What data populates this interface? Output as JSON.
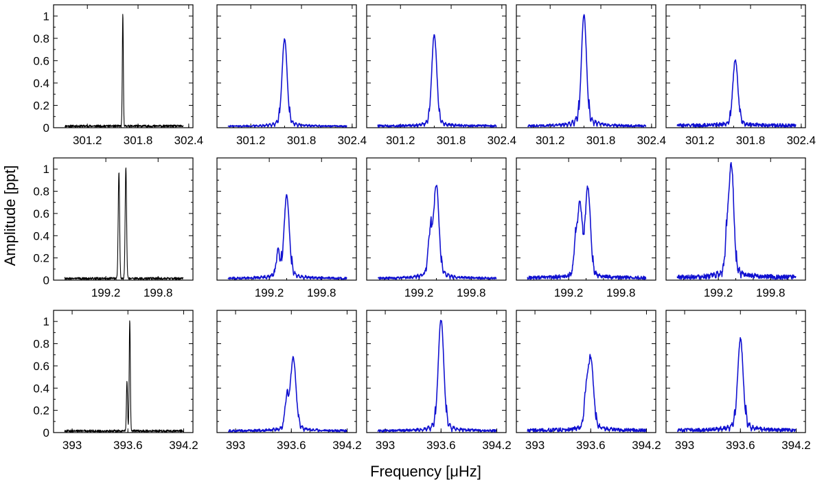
{
  "figure": {
    "ylabel": "Amplitude [ppt]",
    "xlabel": "Frequency [μHz]",
    "colors": {
      "observed": "#000000",
      "model": "#1010d0",
      "axis": "#000000"
    }
  },
  "chart_data": [
    {
      "type": "line",
      "row": 0,
      "x_range": [
        300.8,
        302.45
      ],
      "x_ticks": [
        301.2,
        301.8,
        302.4
      ],
      "x_tick_labels": [
        "301.2",
        "301.8",
        "302.4"
      ],
      "ylim": [
        0,
        1.1
      ],
      "y_ticks": [
        0,
        0.2,
        0.4,
        0.6,
        0.8,
        1
      ],
      "y_tick_labels": [
        "0",
        "0.2",
        "0.4",
        "0.6",
        "0.8",
        "1"
      ],
      "panels": [
        {
          "kind": "observed",
          "peaks": [
            [
              301.62,
              1.0,
              0.006
            ]
          ],
          "sidelobes": 0,
          "noise": 0.02
        },
        {
          "kind": "model",
          "peaks": [
            [
              301.6,
              0.78,
              0.03
            ]
          ],
          "sidelobes": 0.16,
          "noise": 0.015
        },
        {
          "kind": "model",
          "peaks": [
            [
              301.6,
              0.82,
              0.03
            ]
          ],
          "sidelobes": 0.13,
          "noise": 0.02
        },
        {
          "kind": "model",
          "peaks": [
            [
              301.6,
              1.0,
              0.03
            ]
          ],
          "sidelobes": 0.2,
          "noise": 0.02
        },
        {
          "kind": "model",
          "peaks": [
            [
              301.62,
              0.59,
              0.03
            ]
          ],
          "sidelobes": 0.15,
          "noise": 0.03
        }
      ]
    },
    {
      "type": "line",
      "row": 1,
      "x_range": [
        198.6,
        200.2
      ],
      "x_ticks": [
        199.2,
        199.8
      ],
      "x_tick_labels": [
        "199.2",
        "199.8"
      ],
      "ylim": [
        0,
        1.1
      ],
      "y_ticks": [
        0,
        0.2,
        0.4,
        0.6,
        0.8,
        1
      ],
      "y_tick_labels": [
        "0",
        "0.2",
        "0.4",
        "0.6",
        "0.8",
        "1"
      ],
      "panels": [
        {
          "kind": "observed",
          "peaks": [
            [
              199.35,
              0.96,
              0.008
            ],
            [
              199.43,
              1.0,
              0.008
            ]
          ],
          "sidelobes": 0,
          "noise": 0.02
        },
        {
          "kind": "model",
          "peaks": [
            [
              199.4,
              0.74,
              0.03
            ],
            [
              199.3,
              0.22,
              0.02
            ]
          ],
          "sidelobes": 0.2,
          "noise": 0.02
        },
        {
          "kind": "model",
          "peaks": [
            [
              199.4,
              0.82,
              0.03
            ],
            [
              199.33,
              0.38,
              0.025
            ]
          ],
          "sidelobes": 0.18,
          "noise": 0.02
        },
        {
          "kind": "model",
          "peaks": [
            [
              199.33,
              0.64,
              0.025
            ],
            [
              199.42,
              0.8,
              0.03
            ],
            [
              199.28,
              0.3,
              0.02
            ]
          ],
          "sidelobes": 0.12,
          "noise": 0.03
        },
        {
          "kind": "model",
          "peaks": [
            [
              199.35,
              1.0,
              0.028
            ],
            [
              199.3,
              0.33,
              0.02
            ]
          ],
          "sidelobes": 0.18,
          "noise": 0.04
        }
      ]
    },
    {
      "type": "line",
      "row": 2,
      "x_range": [
        392.8,
        394.3
      ],
      "x_ticks": [
        393,
        393.6,
        394.2
      ],
      "x_tick_labels": [
        "393",
        "393.6",
        "394.2"
      ],
      "ylim": [
        0,
        1.1
      ],
      "y_ticks": [
        0,
        0.2,
        0.4,
        0.6,
        0.8,
        1
      ],
      "y_tick_labels": [
        "0",
        "0.2",
        "0.4",
        "0.6",
        "0.8",
        "1"
      ],
      "panels": [
        {
          "kind": "observed",
          "peaks": [
            [
              393.62,
              1.0,
              0.006
            ],
            [
              393.59,
              0.45,
              0.006
            ]
          ],
          "sidelobes": 0,
          "noise": 0.02
        },
        {
          "kind": "model",
          "peaks": [
            [
              393.62,
              0.65,
              0.03
            ],
            [
              393.55,
              0.26,
              0.02
            ]
          ],
          "sidelobes": 0.15,
          "noise": 0.02
        },
        {
          "kind": "model",
          "peaks": [
            [
              393.6,
              1.0,
              0.03
            ]
          ],
          "sidelobes": 0.16,
          "noise": 0.02
        },
        {
          "kind": "model",
          "peaks": [
            [
              393.6,
              0.64,
              0.03
            ],
            [
              393.55,
              0.26,
              0.02
            ]
          ],
          "sidelobes": 0.16,
          "noise": 0.03
        },
        {
          "kind": "model",
          "peaks": [
            [
              393.6,
              0.82,
              0.03
            ]
          ],
          "sidelobes": 0.2,
          "noise": 0.03
        }
      ]
    }
  ]
}
